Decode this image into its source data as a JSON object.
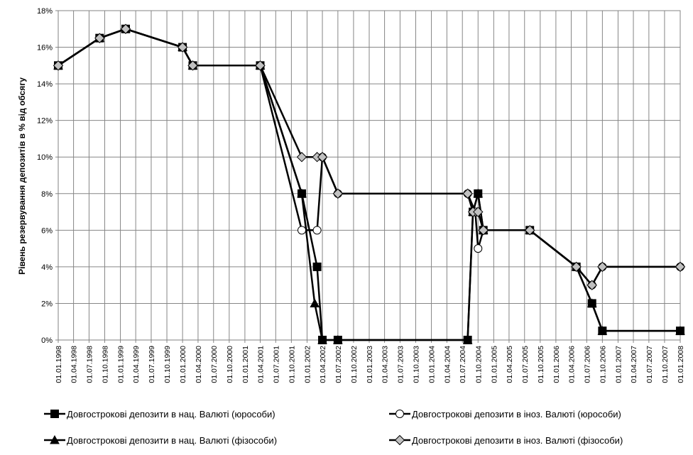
{
  "chart_data": {
    "type": "line",
    "title": "",
    "xlabel": "",
    "ylabel": "Рівень резервування депозитів в % від обсягу",
    "ylim": [
      0,
      18
    ],
    "yticks": [
      "0%",
      "2%",
      "4%",
      "6%",
      "8%",
      "10%",
      "12%",
      "14%",
      "16%",
      "18%"
    ],
    "xlim": [
      "1998-01-01",
      "2008-01-01"
    ],
    "xticks": [
      "01.01.1998",
      "01.04.1998",
      "01.07.1998",
      "01.10.1998",
      "01.01.1999",
      "01.04.1999",
      "01.07.1999",
      "01.10.1999",
      "01.01.2000",
      "01.04.2000",
      "01.07.2000",
      "01.10.2000",
      "01.01.2001",
      "01.04.2001",
      "01.07.2001",
      "01.10.2001",
      "01.01.2002",
      "01.04.2002",
      "01.07.2002",
      "01.10.2002",
      "01.01.2003",
      "01.04.2003",
      "01.07.2003",
      "01.10.2003",
      "01.01.2004",
      "01.04.2004",
      "01.07.2004",
      "01.10.2004",
      "01.01.2005",
      "01.04.2005",
      "01.07.2005",
      "01.10.2005",
      "01.01.2006",
      "01.04.2006",
      "01.07.2006",
      "01.10.2006",
      "01.01.2007",
      "01.04.2007",
      "01.07.2007",
      "01.10.2007",
      "01.01.2008"
    ],
    "grid": true,
    "legend_position": "bottom",
    "series": [
      {
        "name": "Довгострокові депозити в нац. Валюті (юрособи)",
        "marker": "square",
        "marker_color": "#000000",
        "points": [
          [
            "1998-01-01",
            15
          ],
          [
            "1998-09-01",
            16.5
          ],
          [
            "1999-02-01",
            17
          ],
          [
            "2000-01-01",
            16
          ],
          [
            "2000-03-01",
            15
          ],
          [
            "2001-04-01",
            15
          ],
          [
            "2001-12-01",
            8
          ],
          [
            "2002-03-01",
            4
          ],
          [
            "2002-04-01",
            0
          ],
          [
            "2002-07-01",
            0
          ],
          [
            "2004-08-01",
            0
          ],
          [
            "2004-09-01",
            7
          ],
          [
            "2004-10-01",
            8
          ],
          [
            "2004-11-01",
            6
          ],
          [
            "2005-08-01",
            6
          ],
          [
            "2006-05-01",
            4
          ],
          [
            "2006-08-01",
            2
          ],
          [
            "2006-10-01",
            0.5
          ],
          [
            "2008-01-01",
            0.5
          ]
        ]
      },
      {
        "name": "Довгострокові депозити в нац. Валюті (фізособи)",
        "marker": "triangle",
        "marker_color": "#000000",
        "points": [
          [
            "1998-01-01",
            15
          ],
          [
            "1998-09-01",
            16.5
          ],
          [
            "1999-02-01",
            17
          ],
          [
            "2000-01-01",
            16
          ],
          [
            "2000-03-01",
            15
          ],
          [
            "2001-04-01",
            15
          ],
          [
            "2001-12-01",
            8
          ],
          [
            "2002-02-15",
            2
          ],
          [
            "2002-04-01",
            0
          ],
          [
            "2002-07-01",
            0
          ],
          [
            "2004-08-01",
            0
          ],
          [
            "2004-09-01",
            7
          ],
          [
            "2004-10-01",
            8
          ],
          [
            "2004-11-01",
            6
          ],
          [
            "2005-08-01",
            6
          ],
          [
            "2006-05-01",
            4
          ],
          [
            "2006-08-01",
            2
          ],
          [
            "2006-10-01",
            0.5
          ],
          [
            "2008-01-01",
            0.5
          ]
        ]
      },
      {
        "name": "Довгострокові депозити в іноз. Валюті (юрособи)",
        "marker": "circle",
        "marker_color": "#ffffff",
        "points": [
          [
            "1998-01-01",
            15
          ],
          [
            "1998-09-01",
            16.5
          ],
          [
            "1999-02-01",
            17
          ],
          [
            "2000-01-01",
            16
          ],
          [
            "2000-03-01",
            15
          ],
          [
            "2001-04-01",
            15
          ],
          [
            "2001-12-01",
            6
          ],
          [
            "2002-03-01",
            6
          ],
          [
            "2002-04-01",
            10
          ],
          [
            "2002-07-01",
            8
          ],
          [
            "2004-08-01",
            8
          ],
          [
            "2004-09-15",
            7
          ],
          [
            "2004-10-01",
            5
          ],
          [
            "2004-11-01",
            6
          ],
          [
            "2005-08-01",
            6
          ],
          [
            "2006-05-01",
            4
          ],
          [
            "2006-08-01",
            3
          ],
          [
            "2006-10-01",
            4
          ],
          [
            "2008-01-01",
            4
          ]
        ]
      },
      {
        "name": "Довгострокові депозити в іноз. Валюті (фізособи)",
        "marker": "diamond",
        "marker_color": "#c0c0c0",
        "points": [
          [
            "1998-01-01",
            15
          ],
          [
            "1998-09-01",
            16.5
          ],
          [
            "1999-02-01",
            17
          ],
          [
            "2000-01-01",
            16
          ],
          [
            "2000-03-01",
            15
          ],
          [
            "2001-04-01",
            15
          ],
          [
            "2001-12-01",
            10
          ],
          [
            "2002-03-01",
            10
          ],
          [
            "2002-04-01",
            10
          ],
          [
            "2002-07-01",
            8
          ],
          [
            "2004-08-01",
            8
          ],
          [
            "2004-09-01",
            7
          ],
          [
            "2004-10-01",
            7
          ],
          [
            "2004-11-01",
            6
          ],
          [
            "2005-08-01",
            6
          ],
          [
            "2006-05-01",
            4
          ],
          [
            "2006-08-01",
            3
          ],
          [
            "2006-10-01",
            4
          ],
          [
            "2008-01-01",
            4
          ]
        ]
      }
    ]
  }
}
